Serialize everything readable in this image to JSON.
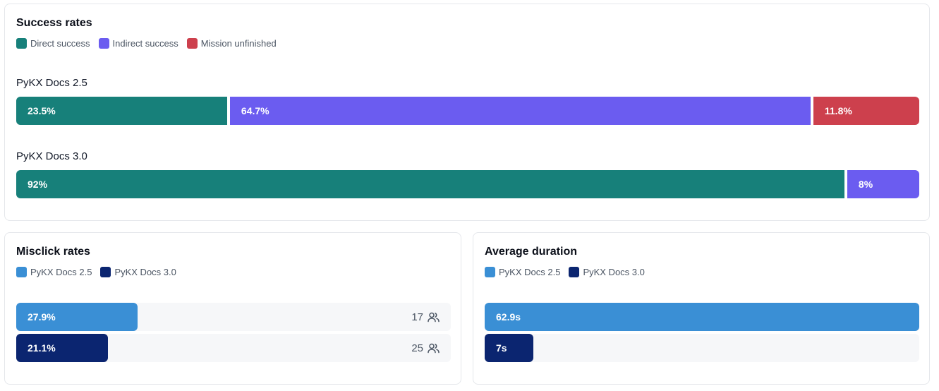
{
  "chart_data": [
    {
      "type": "bar",
      "orientation": "horizontal",
      "stacked": true,
      "title": "Success rates",
      "legend_placement": "top-left",
      "categories": [
        "PyKX Docs 2.5",
        "PyKX Docs 3.0"
      ],
      "series": [
        {
          "name": "Direct success",
          "color": "#17807a",
          "values": [
            23.5,
            92
          ],
          "labels": [
            "23.5%",
            "92%"
          ]
        },
        {
          "name": "Indirect success",
          "color": "#6b5cf0",
          "values": [
            64.7,
            8
          ],
          "labels": [
            "64.7%",
            "8%"
          ]
        },
        {
          "name": "Mission unfinished",
          "color": "#cd404d",
          "values": [
            11.8,
            0
          ],
          "labels": [
            "11.8%",
            ""
          ]
        }
      ]
    },
    {
      "type": "bar",
      "orientation": "horizontal",
      "title": "Misclick rates",
      "legend_placement": "top-left",
      "xlim": [
        0,
        100
      ],
      "series": [
        {
          "name": "PyKX Docs 2.5",
          "color": "#3a8fd5",
          "value": 27.9,
          "label": "27.9%",
          "participants": "17"
        },
        {
          "name": "PyKX Docs 3.0",
          "color": "#0b2570",
          "value": 21.1,
          "label": "21.1%",
          "participants": "25"
        }
      ]
    },
    {
      "type": "bar",
      "orientation": "horizontal",
      "title": "Average duration",
      "legend_placement": "top-left",
      "xlim": [
        0,
        62.9
      ],
      "series": [
        {
          "name": "PyKX Docs 2.5",
          "color": "#3a8fd5",
          "value": 62.9,
          "label": "62.9s"
        },
        {
          "name": "PyKX Docs 3.0",
          "color": "#0b2570",
          "value": 7,
          "label": "7s"
        }
      ]
    }
  ],
  "icons": {
    "participants": "users-icon"
  }
}
